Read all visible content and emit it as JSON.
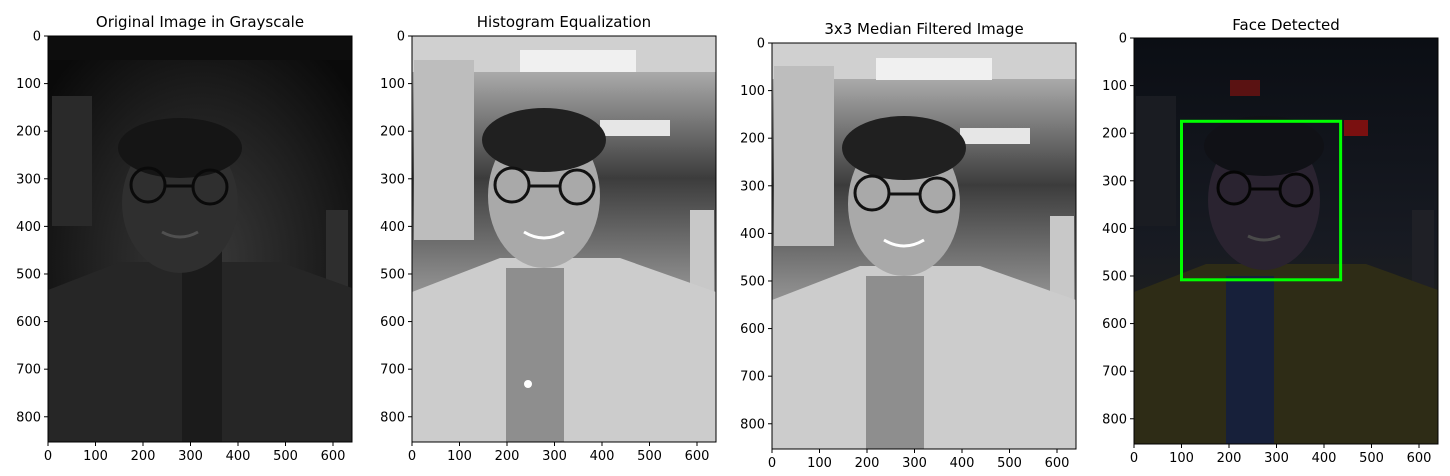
{
  "figure": {
    "panels": [
      {
        "title": "Original Image in Grayscale",
        "kind": "grayscale-dark",
        "xticks": [
          "0",
          "100",
          "200",
          "300",
          "400",
          "500",
          "600"
        ],
        "yticks": [
          "0",
          "100",
          "200",
          "300",
          "400",
          "500",
          "600",
          "700",
          "800"
        ],
        "xlim": [
          0,
          640
        ],
        "ylim": [
          0,
          853
        ]
      },
      {
        "title": "Histogram Equalization",
        "kind": "grayscale-equalized",
        "xticks": [
          "0",
          "100",
          "200",
          "300",
          "400",
          "500",
          "600"
        ],
        "yticks": [
          "0",
          "100",
          "200",
          "300",
          "400",
          "500",
          "600",
          "700",
          "800"
        ],
        "xlim": [
          0,
          640
        ],
        "ylim": [
          0,
          853
        ]
      },
      {
        "title": "3x3 Median Filtered Image",
        "kind": "grayscale-median",
        "xticks": [
          "0",
          "100",
          "200",
          "300",
          "400",
          "500",
          "600"
        ],
        "yticks": [
          "0",
          "100",
          "200",
          "300",
          "400",
          "500",
          "600",
          "700",
          "800"
        ],
        "xlim": [
          0,
          640
        ],
        "ylim": [
          0,
          853
        ]
      },
      {
        "title": "Face Detected",
        "kind": "color-dark",
        "xticks": [
          "0",
          "100",
          "200",
          "300",
          "400",
          "500",
          "600"
        ],
        "yticks": [
          "0",
          "100",
          "200",
          "300",
          "400",
          "500",
          "600",
          "700",
          "800"
        ],
        "xlim": [
          0,
          640
        ],
        "ylim": [
          0,
          853
        ],
        "detection_box": {
          "x0": 100,
          "y0": 175,
          "x1": 435,
          "y1": 508,
          "color": "#00ff00"
        }
      }
    ]
  }
}
